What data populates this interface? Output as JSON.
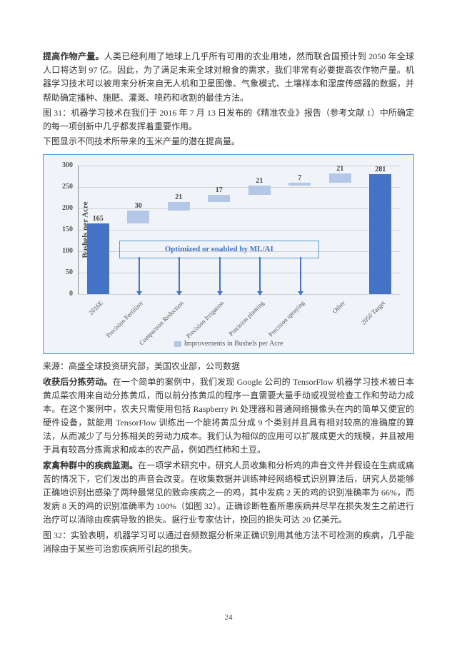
{
  "para1": {
    "lead": "提高作物产量。",
    "rest": "人类已经利用了地球上几乎所有可用的农业用地，然而联合国预计到 2050 年全球人口将达到 97 亿。因此，为了满足未来全球对粮食的需求，我们非常有必要提高农作物产量。机器学习技术可以被用来分析来自无人机和卫星图像、气象模式、土壤样本和湿度传感器的数据，并帮助确定播种、施肥、灌溉、喷药和收割的最佳方法。"
  },
  "fig31_text": "图 31：机器学习技术在我们于 2016 年 7 月 13 日发布的《精准农业》报告（参考文献 1）中所确定的每一项创新中几乎都发挥着重要作用。",
  "fig31_sub": "下图显示不同技术所带来的玉米产量的潜在提高量。",
  "chart": {
    "type": "bar",
    "ylabel": "Bushels per Acre",
    "ylim": [
      0,
      300
    ],
    "ytick_step": 50,
    "grid_color": "#d0d0d0",
    "background_color": "#f0f4f8",
    "border_color": "#5b9bd5",
    "callout_text": "Optimized or enabled by ML/AI",
    "callout_color": "#4472c4",
    "legend_text": "Improvements in Bushels per Acre",
    "legend_color": "#b4c7e7",
    "categories": [
      "2016E",
      "Precision Fertilizer",
      "Compaction Reduction",
      "Precision Irrigation",
      "Precision planting",
      "Precision spraying",
      "Other",
      "2050 Target"
    ],
    "bars": [
      {
        "base": 0,
        "value": 165,
        "color": "#4472c4",
        "label": "165"
      },
      {
        "base": 165,
        "value": 30,
        "color": "#b4c7e7",
        "label": "30"
      },
      {
        "base": 195,
        "value": 21,
        "color": "#b4c7e7",
        "label": "21"
      },
      {
        "base": 216,
        "value": 17,
        "color": "#b4c7e7",
        "label": "17"
      },
      {
        "base": 233,
        "value": 21,
        "color": "#b4c7e7",
        "label": "21"
      },
      {
        "base": 254,
        "value": 7,
        "color": "#b4c7e7",
        "label": "7"
      },
      {
        "base": 261,
        "value": 21,
        "color": "#b4c7e7",
        "label": "21"
      },
      {
        "base": 0,
        "value": 281,
        "color": "#4472c4",
        "label": "281"
      }
    ],
    "label_fontsize": 10,
    "title_fontsize": 11
  },
  "source_text": "来源：高盛全球投资研究部，美国农业部，公司数据",
  "para2": {
    "lead": "收获后分拣劳动。",
    "rest": "在一个简单的案例中，我们发现 Google 公司的 TensorFlow 机器学习技术被日本黄瓜菜农用来自动分拣黄瓜，而以前分拣黄瓜的程序一直需要大量手动或视觉检查工作和劳动力成本。在这个案例中，农夫只需使用包括 Raspberry Pi 处理器和普通网络摄像头在内的简单又便宜的硬件设备，就能用 TensorFlow 训练出一个能将黄瓜分成 9 个类别并且具有相对较高的准确度的算法，从而减少了与分拣相关的劳动力成本。我们认为相似的应用可以扩展成更大的规模，并且被用于具有较高分拣需求和成本的农产品，例如西红柿和土豆。"
  },
  "para3": {
    "lead": "家禽种群中的疾病监测。",
    "rest": "在一项学术研究中，研究人员收集和分析鸡的声音文件并假设在生病或痛苦的情况下，它们发出的声音会改变。在收集数据并训练神经网络模式识别算法后，研究人员能够正确地识别出感染了两种最常见的致命疾病之一的鸡，其中发病 2 天的鸡的识别准确率为 66%，而发病 8 天的鸡的识别准确率为 100%（如图 32）。正确诊断牲畜所患疾病并尽早在损失发生之前进行治疗可以消除由疾病导致的损失。据行业专家估计，挽回的损失可达 20 亿美元。"
  },
  "fig32_text": "图 32：实验表明，机器学习可以通过音频数据分析来正确识别用其他方法不可检测的疾病，几乎能消除由于某些可治愈疾病所引起的损失。",
  "page_number": "24"
}
